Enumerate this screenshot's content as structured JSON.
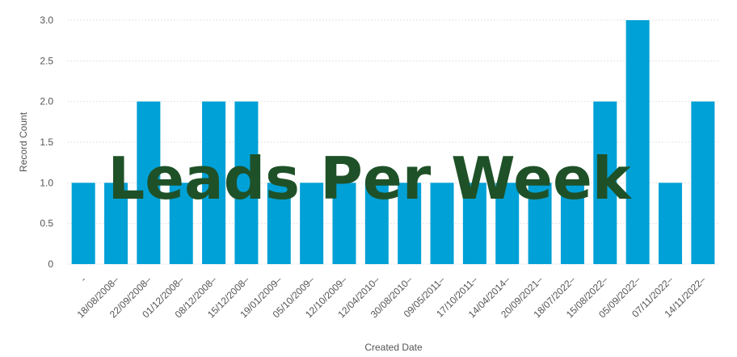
{
  "chart_data": {
    "type": "bar",
    "title": "Leads Per Week",
    "xlabel": "Created Date",
    "ylabel": "Record Count",
    "ylim": [
      0,
      3
    ],
    "yticks": [
      "0",
      "0.5",
      "1.0",
      "1.5",
      "2.0",
      "2.5",
      "3.0"
    ],
    "grid": true,
    "categories": [
      "-",
      "18/08/2008–",
      "22/09/2008–",
      "01/12/2008–",
      "08/12/2008–",
      "15/12/2008–",
      "19/01/2009–",
      "05/10/2009–",
      "12/10/2009–",
      "12/04/2010–",
      "30/08/2010–",
      "09/05/2011–",
      "17/10/2011–",
      "14/04/2014–",
      "20/09/2021–",
      "18/07/2022–",
      "15/08/2022–",
      "05/09/2022–",
      "07/11/2022–",
      "14/11/2022–"
    ],
    "values": [
      1,
      1,
      2,
      1,
      2,
      2,
      1,
      1,
      1,
      1,
      1,
      1,
      1,
      1,
      1,
      1,
      2,
      3,
      1,
      2
    ],
    "bar_color": "#00a1d6",
    "grid_color": "#e3e3e3",
    "title_color": "#1f5128"
  }
}
